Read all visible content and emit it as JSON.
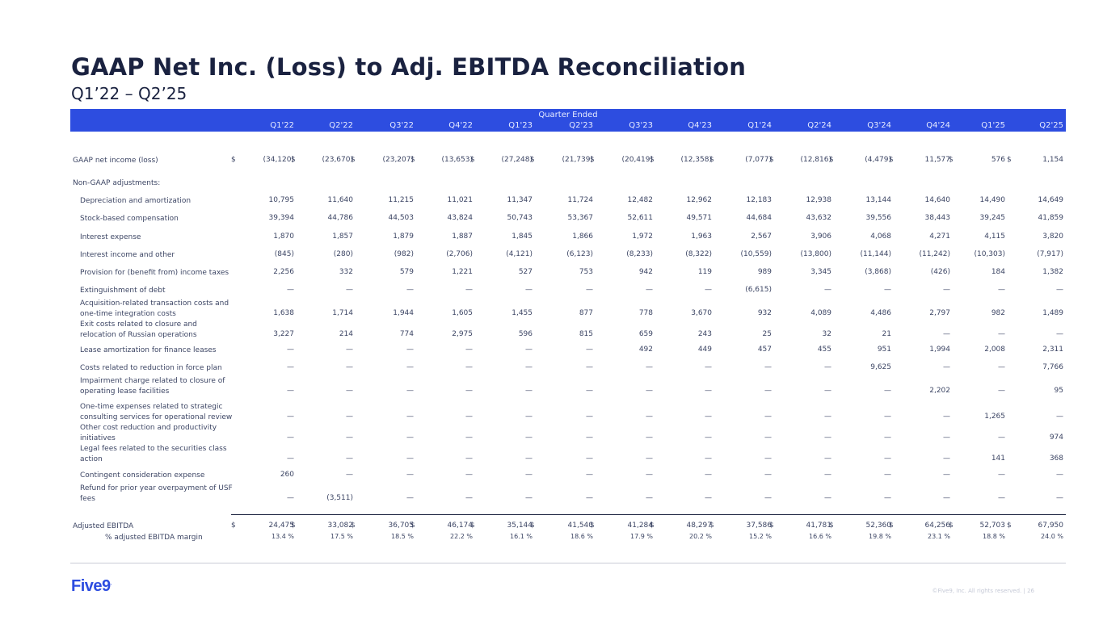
{
  "title": "GAAP Net Inc. (Loss) to Adj. EBITDA Reconciliation",
  "subtitle": "Q1’22 – Q2’25",
  "header": {
    "group_label": "Quarter Ended",
    "quarters": [
      "Q1'22",
      "Q2'22",
      "Q3'22",
      "Q4'22",
      "Q1'23",
      "Q2'23",
      "Q3'23",
      "Q4'23",
      "Q1'24",
      "Q2'24",
      "Q3'24",
      "Q4'24",
      "Q1'25",
      "Q2'25"
    ]
  },
  "rows": [
    {
      "label": [
        "GAAP net income (loss)"
      ],
      "cls": "",
      "dollar": true,
      "values": [
        "(34,120)",
        "(23,670)",
        "(23,207)",
        "(13,653)",
        "(27,248)",
        "(21,739)",
        "(20,419)",
        "(12,358)",
        "(7,077)",
        "(12,816)",
        "(4,479)",
        "11,577",
        "576",
        "1,154"
      ]
    },
    {
      "label": [
        "Non-GAAP adjustments:"
      ],
      "cls": "",
      "values": []
    },
    {
      "label": [
        "Depreciation and amortization"
      ],
      "cls": "sub",
      "values": [
        "10,795",
        "11,640",
        "11,215",
        "11,021",
        "11,347",
        "11,724",
        "12,482",
        "12,962",
        "12,183",
        "12,938",
        "13,144",
        "14,640",
        "14,490",
        "14,649"
      ]
    },
    {
      "label": [
        "Stock-based compensation"
      ],
      "cls": "sub",
      "values": [
        "39,394",
        "44,786",
        "44,503",
        "43,824",
        "50,743",
        "53,367",
        "52,611",
        "49,571",
        "44,684",
        "43,632",
        "39,556",
        "38,443",
        "39,245",
        "41,859"
      ]
    },
    {
      "label": [
        "Interest expense"
      ],
      "cls": "sub",
      "values": [
        "1,870",
        "1,857",
        "1,879",
        "1,887",
        "1,845",
        "1,866",
        "1,972",
        "1,963",
        "2,567",
        "3,906",
        "4,068",
        "4,271",
        "4,115",
        "3,820"
      ]
    },
    {
      "label": [
        "Interest income and other"
      ],
      "cls": "sub",
      "values": [
        "(845)",
        "(280)",
        "(982)",
        "(2,706)",
        "(4,121)",
        "(6,123)",
        "(8,233)",
        "(8,322)",
        "(10,559)",
        "(13,800)",
        "(11,144)",
        "(11,242)",
        "(10,303)",
        "(7,917)"
      ]
    },
    {
      "label": [
        "Provision for (benefit from) income taxes"
      ],
      "cls": "sub",
      "values": [
        "2,256",
        "332",
        "579",
        "1,221",
        "527",
        "753",
        "942",
        "119",
        "989",
        "3,345",
        "(3,868)",
        "(426)",
        "184",
        "1,382"
      ]
    },
    {
      "label": [
        "Extinguishment of debt"
      ],
      "cls": "sub",
      "values": [
        "—",
        "—",
        "—",
        "—",
        "—",
        "—",
        "—",
        "—",
        "(6,615)",
        "—",
        "—",
        "—",
        "—",
        "—"
      ]
    },
    {
      "label": [
        "Acquisition-related transaction costs and",
        "one-time integration costs"
      ],
      "cls": "sub",
      "values": [
        "1,638",
        "1,714",
        "1,944",
        "1,605",
        "1,455",
        "877",
        "778",
        "3,670",
        "932",
        "4,089",
        "4,486",
        "2,797",
        "982",
        "1,489"
      ]
    },
    {
      "label": [
        "Exit costs related to closure and",
        "relocation of Russian operations"
      ],
      "cls": "sub",
      "values": [
        "3,227",
        "214",
        "774",
        "2,975",
        "596",
        "815",
        "659",
        "243",
        "25",
        "32",
        "21",
        "—",
        "—",
        "—"
      ]
    },
    {
      "label": [
        "Lease amortization for finance leases"
      ],
      "cls": "sub",
      "values": [
        "—",
        "—",
        "—",
        "—",
        "—",
        "—",
        "492",
        "449",
        "457",
        "455",
        "951",
        "1,994",
        "2,008",
        "2,311"
      ]
    },
    {
      "label": [
        "Costs related to reduction in force plan"
      ],
      "cls": "sub",
      "values": [
        "—",
        "—",
        "—",
        "—",
        "—",
        "—",
        "—",
        "—",
        "—",
        "—",
        "9,625",
        "—",
        "—",
        "7,766"
      ]
    },
    {
      "label": [
        "Impairment charge related to closure of",
        "operating lease facilities"
      ],
      "cls": "sub",
      "values": [
        "—",
        "—",
        "—",
        "—",
        "—",
        "—",
        "—",
        "—",
        "—",
        "—",
        "—",
        "2,202",
        "—",
        "95"
      ]
    },
    {
      "label": [
        "One-time expenses related to strategic",
        "consulting services for operational review"
      ],
      "cls": "sub",
      "values": [
        "—",
        "—",
        "—",
        "—",
        "—",
        "—",
        "—",
        "—",
        "—",
        "—",
        "—",
        "—",
        "1,265",
        "—"
      ]
    },
    {
      "label": [
        "Other cost reduction and productivity",
        "initiatives"
      ],
      "cls": "sub",
      "values": [
        "—",
        "—",
        "—",
        "—",
        "—",
        "—",
        "—",
        "—",
        "—",
        "—",
        "—",
        "—",
        "—",
        "974"
      ]
    },
    {
      "label": [
        "Legal fees related to the securities class",
        "action"
      ],
      "cls": "sub",
      "values": [
        "—",
        "—",
        "—",
        "—",
        "—",
        "—",
        "—",
        "—",
        "—",
        "—",
        "—",
        "—",
        "141",
        "368"
      ]
    },
    {
      "label": [
        "Contingent consideration expense"
      ],
      "cls": "sub",
      "values": [
        "260",
        "—",
        "—",
        "—",
        "—",
        "—",
        "—",
        "—",
        "—",
        "—",
        "—",
        "—",
        "—",
        "—"
      ]
    },
    {
      "label": [
        "Refund for prior year overpayment of USF",
        "fees"
      ],
      "cls": "sub",
      "values": [
        "—",
        "(3,511)",
        "—",
        "—",
        "—",
        "—",
        "—",
        "—",
        "—",
        "—",
        "—",
        "—",
        "—",
        "—"
      ]
    },
    {
      "label": [
        "Adjusted EBITDA"
      ],
      "cls": "",
      "dollar": true,
      "values": [
        "24,475",
        "33,082",
        "36,705",
        "46,174",
        "35,144",
        "41,540",
        "41,284",
        "48,297",
        "37,586",
        "41,781",
        "52,360",
        "64,256",
        "52,703",
        "67,950"
      ]
    },
    {
      "label": [
        "% adjusted EBITDA margin"
      ],
      "cls": "ind",
      "pct": true,
      "values": [
        "13.4 %",
        "17.5 %",
        "18.5 %",
        "22.2 %",
        "16.1 %",
        "18.6 %",
        "17.9 %",
        "20.2 %",
        "15.2 %",
        "16.6 %",
        "19.8 %",
        "23.1 %",
        "18.8 %",
        "24.0 %"
      ]
    }
  ],
  "currency_symbol": "$",
  "logo_text": "Five9",
  "logo_mark": ".",
  "footer": "©Five9, Inc. All rights reserved. | 26"
}
